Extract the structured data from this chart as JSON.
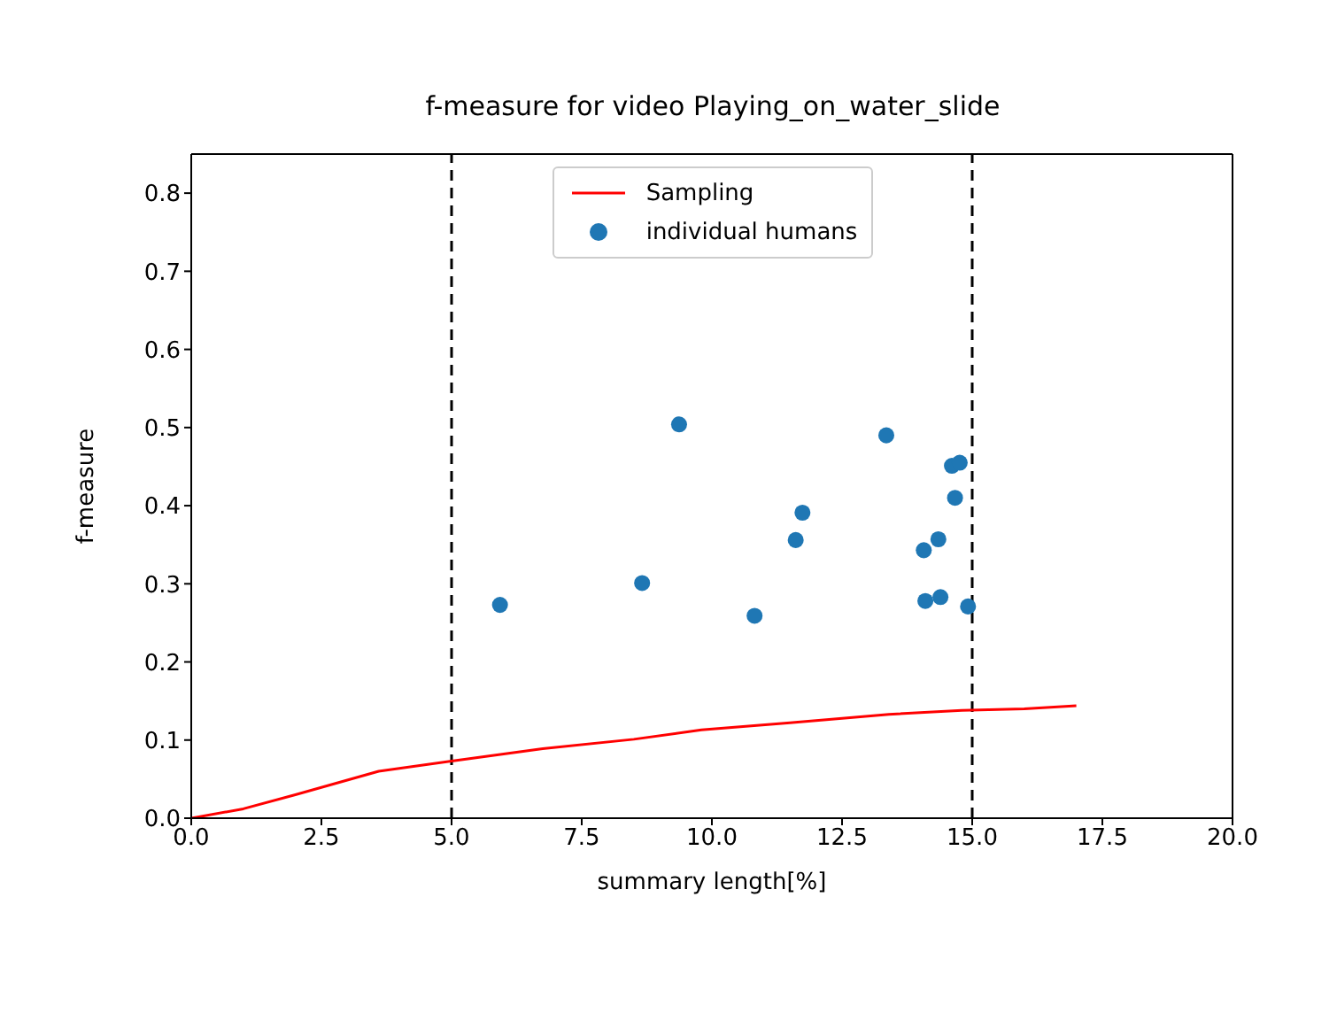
{
  "chart_data": {
    "type": "scatter",
    "title": "f-measure for video Playing_on_water_slide",
    "xlabel": "summary length[%]",
    "ylabel": "f-measure",
    "xlim": [
      0,
      20
    ],
    "xticks": [
      {
        "value": 0,
        "label": "0.0"
      },
      {
        "value": 2.5,
        "label": "2.5"
      },
      {
        "value": 5,
        "label": "5.0"
      },
      {
        "value": 7.5,
        "label": "7.5"
      },
      {
        "value": 10,
        "label": "10.0"
      },
      {
        "value": 12.5,
        "label": "12.5"
      },
      {
        "value": 15,
        "label": "15.0"
      },
      {
        "value": 17.5,
        "label": "17.5"
      },
      {
        "value": 20,
        "label": "20.0"
      }
    ],
    "ylim": [
      0,
      0.85
    ],
    "yticks": [
      {
        "value": 0,
        "label": "0.0"
      },
      {
        "value": 0.1,
        "label": "0.1"
      },
      {
        "value": 0.2,
        "label": "0.2"
      },
      {
        "value": 0.3,
        "label": "0.3"
      },
      {
        "value": 0.4,
        "label": "0.4"
      },
      {
        "value": 0.5,
        "label": "0.5"
      },
      {
        "value": 0.6,
        "label": "0.6"
      },
      {
        "value": 0.7,
        "label": "0.7"
      },
      {
        "value": 0.8,
        "label": "0.8"
      }
    ],
    "grid": false,
    "legend": "top",
    "series": [
      {
        "name": "Sampling",
        "type": "line",
        "color": "#ff0000",
        "marker": "none",
        "line_style": "solid",
        "x": [
          0,
          1,
          2,
          3.6,
          5,
          6.75,
          8.5,
          9.8,
          11.5,
          13.4,
          14.8,
          16,
          17
        ],
        "values": [
          0,
          0.012,
          0.03,
          0.06,
          0.073,
          0.089,
          0.101,
          0.113,
          0.122,
          0.133,
          0.138,
          0.14,
          0.144
        ]
      },
      {
        "name": "individual humans",
        "color": "#1f77b4",
        "marker": "circle",
        "x": [
          5.93,
          8.66,
          9.37,
          10.82,
          11.61,
          11.74,
          13.35,
          14.07,
          14.35,
          14.1,
          14.39,
          14.61,
          14.76,
          14.67,
          14.92
        ],
        "values": [
          0.273,
          0.301,
          0.504,
          0.259,
          0.356,
          0.391,
          0.49,
          0.343,
          0.357,
          0.278,
          0.283,
          0.451,
          0.455,
          0.41,
          0.271
        ]
      }
    ],
    "ref_lines": [
      {
        "axis": "x",
        "value": 5,
        "color": "#000000",
        "line_style": "dashed"
      },
      {
        "axis": "x",
        "value": 15,
        "color": "#000000",
        "line_style": "dashed"
      }
    ]
  }
}
